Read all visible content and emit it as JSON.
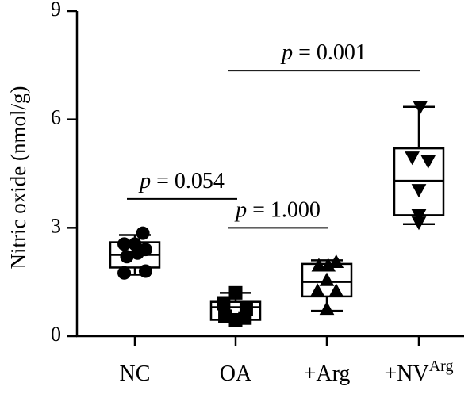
{
  "chart_data": {
    "type": "box",
    "ylabel": "Nitric oxide (nmol/g)",
    "ylim": [
      0,
      9
    ],
    "yticks": [
      0,
      3,
      6,
      9
    ],
    "categories": [
      {
        "label": "NC",
        "base": "NC",
        "sup": ""
      },
      {
        "label": "OA",
        "base": "OA",
        "sup": ""
      },
      {
        "label": "+Arg",
        "base": "+Arg",
        "sup": ""
      },
      {
        "label": "+NVArg",
        "base": "+NV",
        "sup": "Arg"
      }
    ],
    "groups": [
      {
        "name": "NC",
        "marker": "circle",
        "min": 1.7,
        "q1": 1.9,
        "median": 2.25,
        "q3": 2.6,
        "max": 2.8,
        "points": [
          [
            -0.4,
            1.75
          ],
          [
            0.4,
            1.8
          ],
          [
            -0.3,
            2.2
          ],
          [
            0.1,
            2.3
          ],
          [
            0.4,
            2.4
          ],
          [
            0.3,
            2.85
          ],
          [
            -0.4,
            2.55
          ],
          [
            0.0,
            2.55
          ]
        ]
      },
      {
        "name": "OA",
        "marker": "square",
        "min": 0.4,
        "q1": 0.45,
        "median": 0.8,
        "q3": 0.95,
        "max": 1.2,
        "points": [
          [
            -0.45,
            0.9
          ],
          [
            0.0,
            1.2
          ],
          [
            0.4,
            0.75
          ],
          [
            -0.4,
            0.55
          ],
          [
            0.0,
            0.45
          ],
          [
            0.35,
            0.5
          ]
        ]
      },
      {
        "name": "+Arg",
        "marker": "triangle-up",
        "min": 0.7,
        "q1": 1.1,
        "median": 1.5,
        "q3": 2.0,
        "max": 2.1,
        "points": [
          [
            0.0,
            0.75
          ],
          [
            -0.35,
            1.25
          ],
          [
            0.35,
            1.25
          ],
          [
            -0.3,
            1.95
          ],
          [
            0.05,
            1.95
          ],
          [
            0.35,
            2.05
          ],
          [
            0.0,
            1.55
          ]
        ]
      },
      {
        "name": "+NVArg",
        "marker": "triangle-down",
        "min": 3.1,
        "q1": 3.35,
        "median": 4.3,
        "q3": 5.2,
        "max": 6.35,
        "points": [
          [
            0.05,
            6.35
          ],
          [
            -0.25,
            4.95
          ],
          [
            0.35,
            4.85
          ],
          [
            0.0,
            4.05
          ],
          [
            0.0,
            3.35
          ],
          [
            0.0,
            3.15
          ]
        ]
      }
    ],
    "comparisons": [
      {
        "from": 0,
        "to": 1,
        "y": 3.8,
        "label_p": "p",
        "label_rest": " = 0.054"
      },
      {
        "from": 1,
        "to": 2,
        "y": 3.0,
        "label_p": "p",
        "label_rest": " = 1.000"
      },
      {
        "from": 1,
        "to": 3,
        "y": 7.35,
        "label_p": "p",
        "label_rest": " = 0.001"
      }
    ]
  }
}
